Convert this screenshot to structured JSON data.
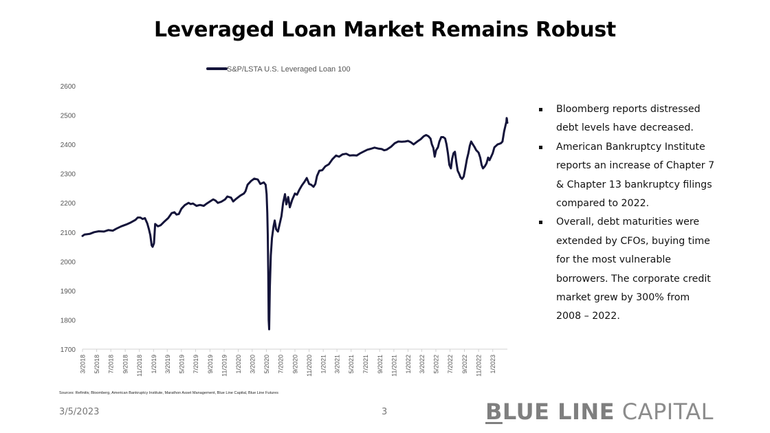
{
  "slide": {
    "title": "Leveraged Loan Market Remains Robust",
    "date": "3/5/2023",
    "page_number": "3",
    "sources": "Sources: Refinitiv, Bloomberg, American Bankruptcy Institute, Marathon Asset Management, Blue Line Capital, Blue Line Futures",
    "brand": {
      "letter_b": "B",
      "strong_rest": "LUE LINE",
      "light": " CAPITAL"
    }
  },
  "bullets": [
    "Bloomberg reports distressed debt levels have decreased.",
    "American Bankruptcy Institute reports an increase of Chapter 7 & Chapter 13 bankruptcy filings compared to 2022.",
    "Overall, debt maturities were extended by CFOs, buying time for the most vulnerable borrowers. The corporate credit market grew by 300% from 2008 – 2022."
  ],
  "colors": {
    "line": "#14143a",
    "axis": "#d0d0d0",
    "text": "#000000",
    "muted": "#777777"
  },
  "chart_data": {
    "type": "line",
    "title": "",
    "xlabel": "",
    "ylabel": "",
    "ylim": [
      1700,
      2600
    ],
    "yticks": [
      1700,
      1800,
      1900,
      2000,
      2100,
      2200,
      2300,
      2400,
      2500,
      2600
    ],
    "xlim": [
      "2018-03-01",
      "2023-03-05"
    ],
    "xticks": [
      "3/2018",
      "5/2018",
      "7/2018",
      "9/2018",
      "11/2018",
      "1/2019",
      "3/2019",
      "5/2019",
      "7/2019",
      "9/2019",
      "11/2019",
      "1/2020",
      "3/2020",
      "5/2020",
      "7/2020",
      "9/2020",
      "11/2020",
      "1/2021",
      "3/2021",
      "5/2021",
      "7/2021",
      "9/2021",
      "11/2021",
      "1/2022",
      "3/2022",
      "5/2022",
      "7/2022",
      "9/2022",
      "11/2022",
      "1/2023"
    ],
    "grid": false,
    "legend_position": "top",
    "series": [
      {
        "name": "S&P/LSTA U.S. Leveraged Loan 100",
        "points": [
          [
            "2018-03-01",
            2087
          ],
          [
            "2018-03-10",
            2092
          ],
          [
            "2018-04-01",
            2094
          ],
          [
            "2018-04-20",
            2100
          ],
          [
            "2018-05-10",
            2103
          ],
          [
            "2018-06-01",
            2102
          ],
          [
            "2018-06-20",
            2107
          ],
          [
            "2018-07-10",
            2105
          ],
          [
            "2018-07-25",
            2112
          ],
          [
            "2018-08-15",
            2120
          ],
          [
            "2018-09-05",
            2126
          ],
          [
            "2018-09-25",
            2133
          ],
          [
            "2018-10-15",
            2142
          ],
          [
            "2018-10-25",
            2150
          ],
          [
            "2018-11-05",
            2150
          ],
          [
            "2018-11-15",
            2145
          ],
          [
            "2018-11-25",
            2148
          ],
          [
            "2018-12-05",
            2130
          ],
          [
            "2018-12-12",
            2110
          ],
          [
            "2018-12-18",
            2090
          ],
          [
            "2018-12-24",
            2055
          ],
          [
            "2018-12-28",
            2050
          ],
          [
            "2019-01-03",
            2062
          ],
          [
            "2019-01-08",
            2128
          ],
          [
            "2019-01-20",
            2120
          ],
          [
            "2019-02-01",
            2124
          ],
          [
            "2019-02-15",
            2135
          ],
          [
            "2019-03-05",
            2148
          ],
          [
            "2019-03-20",
            2165
          ],
          [
            "2019-04-01",
            2168
          ],
          [
            "2019-04-10",
            2160
          ],
          [
            "2019-04-20",
            2162
          ],
          [
            "2019-05-01",
            2180
          ],
          [
            "2019-05-15",
            2192
          ],
          [
            "2019-06-01",
            2200
          ],
          [
            "2019-06-10",
            2196
          ],
          [
            "2019-06-20",
            2198
          ],
          [
            "2019-07-05",
            2190
          ],
          [
            "2019-07-20",
            2193
          ],
          [
            "2019-08-05",
            2190
          ],
          [
            "2019-08-15",
            2196
          ],
          [
            "2019-09-01",
            2205
          ],
          [
            "2019-09-15",
            2212
          ],
          [
            "2019-09-25",
            2208
          ],
          [
            "2019-10-05",
            2200
          ],
          [
            "2019-10-20",
            2204
          ],
          [
            "2019-11-05",
            2212
          ],
          [
            "2019-11-15",
            2222
          ],
          [
            "2019-12-01",
            2218
          ],
          [
            "2019-12-10",
            2205
          ],
          [
            "2019-12-20",
            2212
          ],
          [
            "2020-01-10",
            2225
          ],
          [
            "2020-01-25",
            2232
          ],
          [
            "2020-02-01",
            2240
          ],
          [
            "2020-02-10",
            2262
          ],
          [
            "2020-02-25",
            2275
          ],
          [
            "2020-03-10",
            2283
          ],
          [
            "2020-03-25",
            2280
          ],
          [
            "2020-04-05",
            2265
          ],
          [
            "2020-04-20",
            2270
          ],
          [
            "2020-04-28",
            2262
          ],
          [
            "2020-05-02",
            2230
          ],
          [
            "2020-05-05",
            2165
          ],
          [
            "2020-05-07",
            2090
          ],
          [
            "2020-05-09",
            1960
          ],
          [
            "2020-05-11",
            1800
          ],
          [
            "2020-05-13",
            1768
          ],
          [
            "2020-05-16",
            1910
          ],
          [
            "2020-05-20",
            2020
          ],
          [
            "2020-05-25",
            2080
          ],
          [
            "2020-06-01",
            2120
          ],
          [
            "2020-06-06",
            2140
          ],
          [
            "2020-06-12",
            2110
          ],
          [
            "2020-06-20",
            2102
          ],
          [
            "2020-06-28",
            2130
          ],
          [
            "2020-07-05",
            2155
          ],
          [
            "2020-07-12",
            2200
          ],
          [
            "2020-07-20",
            2230
          ],
          [
            "2020-07-26",
            2195
          ],
          [
            "2020-08-03",
            2220
          ],
          [
            "2020-08-10",
            2185
          ],
          [
            "2020-08-20",
            2210
          ],
          [
            "2020-09-01",
            2232
          ],
          [
            "2020-09-10",
            2228
          ],
          [
            "2020-09-20",
            2245
          ],
          [
            "2020-10-01",
            2260
          ],
          [
            "2020-10-12",
            2272
          ],
          [
            "2020-10-22",
            2285
          ],
          [
            "2020-11-01",
            2265
          ],
          [
            "2020-11-10",
            2262
          ],
          [
            "2020-11-20",
            2255
          ],
          [
            "2020-11-28",
            2265
          ],
          [
            "2020-12-05",
            2292
          ],
          [
            "2020-12-15",
            2310
          ],
          [
            "2020-12-28",
            2312
          ],
          [
            "2021-01-10",
            2325
          ],
          [
            "2021-01-25",
            2332
          ],
          [
            "2021-02-10",
            2350
          ],
          [
            "2021-02-25",
            2362
          ],
          [
            "2021-03-10",
            2358
          ],
          [
            "2021-03-25",
            2366
          ],
          [
            "2021-04-10",
            2368
          ],
          [
            "2021-04-25",
            2362
          ],
          [
            "2021-05-10",
            2363
          ],
          [
            "2021-05-25",
            2362
          ],
          [
            "2021-06-10",
            2370
          ],
          [
            "2021-06-25",
            2376
          ],
          [
            "2021-07-10",
            2382
          ],
          [
            "2021-07-25",
            2385
          ],
          [
            "2021-08-10",
            2389
          ],
          [
            "2021-08-25",
            2386
          ],
          [
            "2021-09-10",
            2384
          ],
          [
            "2021-09-20",
            2380
          ],
          [
            "2021-10-01",
            2382
          ],
          [
            "2021-10-20",
            2392
          ],
          [
            "2021-11-05",
            2404
          ],
          [
            "2021-11-20",
            2410
          ],
          [
            "2021-12-05",
            2409
          ],
          [
            "2021-12-20",
            2410
          ],
          [
            "2022-01-01",
            2412
          ],
          [
            "2022-01-12",
            2408
          ],
          [
            "2022-01-25",
            2400
          ],
          [
            "2022-02-10",
            2410
          ],
          [
            "2022-02-25",
            2418
          ],
          [
            "2022-03-10",
            2428
          ],
          [
            "2022-03-20",
            2432
          ],
          [
            "2022-03-30",
            2428
          ],
          [
            "2022-04-08",
            2420
          ],
          [
            "2022-04-14",
            2400
          ],
          [
            "2022-04-20",
            2388
          ],
          [
            "2022-04-26",
            2358
          ],
          [
            "2022-05-02",
            2380
          ],
          [
            "2022-05-10",
            2390
          ],
          [
            "2022-05-16",
            2410
          ],
          [
            "2022-05-24",
            2425
          ],
          [
            "2022-06-02",
            2425
          ],
          [
            "2022-06-10",
            2420
          ],
          [
            "2022-06-16",
            2400
          ],
          [
            "2022-06-22",
            2370
          ],
          [
            "2022-06-28",
            2330
          ],
          [
            "2022-07-05",
            2318
          ],
          [
            "2022-07-10",
            2350
          ],
          [
            "2022-07-16",
            2370
          ],
          [
            "2022-07-22",
            2375
          ],
          [
            "2022-07-28",
            2340
          ],
          [
            "2022-08-03",
            2310
          ],
          [
            "2022-08-09",
            2300
          ],
          [
            "2022-08-15",
            2288
          ],
          [
            "2022-08-22",
            2282
          ],
          [
            "2022-08-29",
            2290
          ],
          [
            "2022-09-05",
            2320
          ],
          [
            "2022-09-12",
            2350
          ],
          [
            "2022-09-18",
            2370
          ],
          [
            "2022-09-24",
            2395
          ],
          [
            "2022-09-30",
            2410
          ],
          [
            "2022-10-06",
            2402
          ],
          [
            "2022-10-14",
            2392
          ],
          [
            "2022-10-22",
            2380
          ],
          [
            "2022-11-01",
            2372
          ],
          [
            "2022-11-08",
            2355
          ],
          [
            "2022-11-14",
            2330
          ],
          [
            "2022-11-20",
            2318
          ],
          [
            "2022-11-28",
            2325
          ],
          [
            "2022-12-05",
            2335
          ],
          [
            "2022-12-12",
            2355
          ],
          [
            "2022-12-18",
            2346
          ],
          [
            "2022-12-25",
            2358
          ],
          [
            "2023-01-01",
            2370
          ],
          [
            "2023-01-08",
            2390
          ],
          [
            "2023-01-15",
            2395
          ],
          [
            "2023-01-22",
            2400
          ],
          [
            "2023-01-29",
            2402
          ],
          [
            "2023-02-05",
            2404
          ],
          [
            "2023-02-12",
            2410
          ],
          [
            "2023-02-19",
            2445
          ],
          [
            "2023-02-24",
            2462
          ],
          [
            "2023-02-28",
            2475
          ],
          [
            "2023-03-01",
            2478
          ],
          [
            "2023-03-02",
            2490
          ],
          [
            "2023-03-03",
            2487
          ],
          [
            "2023-03-04",
            2477
          ],
          [
            "2023-03-05",
            2474
          ]
        ]
      }
    ]
  }
}
